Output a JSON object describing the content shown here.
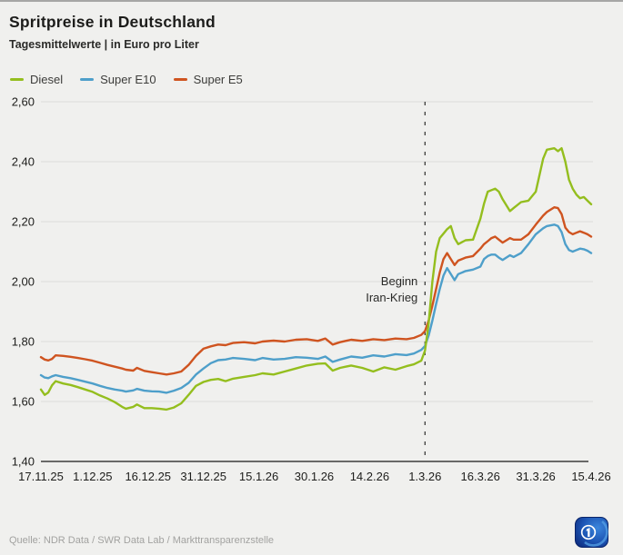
{
  "header": {
    "title": "Spritpreise in Deutschland",
    "subtitle": "Tagesmittelwerte | in Euro pro Liter"
  },
  "footer": {
    "source": "Quelle: NDR Data / SWR Data Lab / Markttransparenzstelle",
    "logo": "tagesschau-logo"
  },
  "chart_data": {
    "type": "line",
    "title": "Spritpreise in Deutschland",
    "subtitle": "Tagesmittelwerte | in Euro pro Liter",
    "ylabel": "Euro pro Liter",
    "ylim": [
      1.4,
      2.6
    ],
    "grid": "horizontal",
    "legend_position": "top-left",
    "x_axis": {
      "unit": "date",
      "start": "17.11.25",
      "end": "15.4.26",
      "total_days": 149
    },
    "yticks": [
      {
        "value": 2.6,
        "label": "2,60"
      },
      {
        "value": 2.4,
        "label": "2,40"
      },
      {
        "value": 2.2,
        "label": "2,20"
      },
      {
        "value": 2.0,
        "label": "2,00"
      },
      {
        "value": 1.8,
        "label": "1,80"
      },
      {
        "value": 1.6,
        "label": "1,60"
      },
      {
        "value": 1.4,
        "label": "1,40"
      }
    ],
    "xticks": [
      {
        "label": "17.11.25",
        "day": 0
      },
      {
        "label": "1.12.25",
        "day": 14
      },
      {
        "label": "16.12.25",
        "day": 29
      },
      {
        "label": "31.12.25",
        "day": 44
      },
      {
        "label": "15.1.26",
        "day": 59
      },
      {
        "label": "30.1.26",
        "day": 74
      },
      {
        "label": "14.2.26",
        "day": 89
      },
      {
        "label": "1.3.26",
        "day": 104
      },
      {
        "label": "16.3.26",
        "day": 119
      },
      {
        "label": "31.3.26",
        "day": 134
      },
      {
        "label": "15.4.26",
        "day": 149
      }
    ],
    "annotation": {
      "lines": [
        "Beginn",
        "Iran-Krieg"
      ],
      "day": 104,
      "date": "1.3.26"
    },
    "days": [
      0,
      1,
      2,
      3,
      4,
      6,
      8,
      10,
      12,
      14,
      16,
      18,
      20,
      22,
      23,
      25,
      26,
      28,
      30,
      32,
      34,
      36,
      38,
      40,
      42,
      44,
      46,
      48,
      50,
      52,
      55,
      58,
      60,
      63,
      66,
      69,
      72,
      75,
      77,
      79,
      81,
      84,
      87,
      90,
      93,
      96,
      99,
      101,
      103,
      104,
      105,
      106,
      107,
      108,
      109,
      110,
      111,
      112,
      113,
      115,
      117,
      119,
      120,
      121,
      122,
      123,
      124,
      125,
      127,
      128,
      130,
      132,
      134,
      136,
      137,
      139,
      140,
      141,
      142,
      143,
      144,
      145,
      146,
      147,
      148,
      149
    ],
    "series": [
      {
        "id": "diesel",
        "name": "Diesel",
        "color": "#94be1e",
        "values": [
          1.64,
          1.622,
          1.63,
          1.654,
          1.668,
          1.66,
          1.655,
          1.648,
          1.64,
          1.632,
          1.62,
          1.61,
          1.598,
          1.582,
          1.576,
          1.582,
          1.59,
          1.578,
          1.578,
          1.576,
          1.573,
          1.58,
          1.594,
          1.622,
          1.652,
          1.665,
          1.672,
          1.675,
          1.668,
          1.676,
          1.682,
          1.688,
          1.694,
          1.69,
          1.7,
          1.71,
          1.72,
          1.726,
          1.727,
          1.703,
          1.712,
          1.72,
          1.712,
          1.7,
          1.714,
          1.706,
          1.718,
          1.724,
          1.736,
          1.77,
          1.86,
          2.0,
          2.1,
          2.145,
          2.16,
          2.175,
          2.185,
          2.145,
          2.125,
          2.138,
          2.14,
          2.21,
          2.26,
          2.3,
          2.305,
          2.31,
          2.3,
          2.275,
          2.235,
          2.245,
          2.265,
          2.27,
          2.3,
          2.41,
          2.44,
          2.445,
          2.435,
          2.445,
          2.4,
          2.34,
          2.31,
          2.29,
          2.278,
          2.282,
          2.27,
          2.258
        ]
      },
      {
        "id": "super-e10",
        "name": "Super E10",
        "color": "#4e9fca",
        "values": [
          1.688,
          1.68,
          1.678,
          1.684,
          1.688,
          1.682,
          1.678,
          1.672,
          1.666,
          1.66,
          1.652,
          1.645,
          1.64,
          1.636,
          1.633,
          1.637,
          1.642,
          1.636,
          1.634,
          1.633,
          1.629,
          1.636,
          1.645,
          1.662,
          1.69,
          1.71,
          1.728,
          1.738,
          1.74,
          1.745,
          1.742,
          1.738,
          1.745,
          1.74,
          1.742,
          1.748,
          1.746,
          1.742,
          1.75,
          1.732,
          1.74,
          1.75,
          1.746,
          1.754,
          1.75,
          1.758,
          1.755,
          1.76,
          1.772,
          1.785,
          1.82,
          1.87,
          1.925,
          1.975,
          2.02,
          2.045,
          2.025,
          2.005,
          2.025,
          2.035,
          2.04,
          2.05,
          2.075,
          2.085,
          2.09,
          2.09,
          2.08,
          2.072,
          2.088,
          2.082,
          2.095,
          2.125,
          2.158,
          2.178,
          2.185,
          2.19,
          2.185,
          2.165,
          2.125,
          2.105,
          2.1,
          2.105,
          2.11,
          2.108,
          2.103,
          2.095
        ]
      },
      {
        "id": "super-e5",
        "name": "Super E5",
        "color": "#cf5420",
        "values": [
          1.748,
          1.74,
          1.737,
          1.742,
          1.754,
          1.752,
          1.749,
          1.745,
          1.741,
          1.736,
          1.729,
          1.722,
          1.716,
          1.71,
          1.706,
          1.703,
          1.712,
          1.702,
          1.698,
          1.694,
          1.69,
          1.694,
          1.7,
          1.722,
          1.752,
          1.776,
          1.784,
          1.79,
          1.788,
          1.795,
          1.798,
          1.794,
          1.8,
          1.803,
          1.8,
          1.806,
          1.808,
          1.802,
          1.81,
          1.79,
          1.798,
          1.806,
          1.802,
          1.808,
          1.805,
          1.81,
          1.808,
          1.812,
          1.822,
          1.835,
          1.87,
          1.92,
          1.975,
          2.03,
          2.075,
          2.095,
          2.075,
          2.055,
          2.07,
          2.08,
          2.085,
          2.11,
          2.125,
          2.135,
          2.145,
          2.15,
          2.14,
          2.13,
          2.145,
          2.14,
          2.14,
          2.158,
          2.19,
          2.22,
          2.232,
          2.248,
          2.245,
          2.225,
          2.18,
          2.165,
          2.158,
          2.163,
          2.168,
          2.163,
          2.158,
          2.15
        ]
      }
    ],
    "colors": {
      "background": "#f0f0ee",
      "grid": "#dcdcda",
      "axis": "#3c3c3c",
      "annotation_line": "#2e2e2e",
      "diesel": "#94be1e",
      "super_e10": "#4e9fca",
      "super_e5": "#cf5420"
    }
  }
}
